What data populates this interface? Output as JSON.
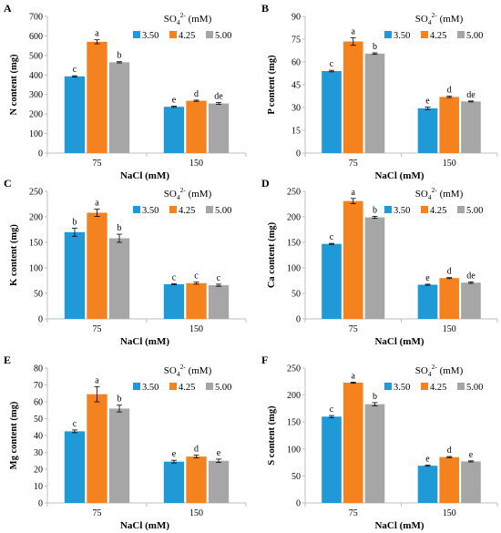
{
  "colors": {
    "s350": "#1f9ad6",
    "s425": "#f4821f",
    "s500": "#a6a6a6",
    "axis": "#bfbfbf"
  },
  "legend": {
    "title_base": "SO",
    "title_sub": "4",
    "title_sup": "2-",
    "title_unit": " (mM)",
    "entries": [
      "3.50",
      "4.25",
      "5.00"
    ]
  },
  "chart_data": [
    {
      "type": "bar",
      "panel": "A",
      "ylabel": "N content (mg)",
      "xlabel": "NaCl (mM)",
      "categories": [
        "75",
        "150"
      ],
      "ylim": [
        0,
        700
      ],
      "yticks": [
        "0",
        "100",
        "200",
        "300",
        "400",
        "500",
        "600",
        "700"
      ],
      "series": [
        {
          "values": [
            393,
            237
          ],
          "errors": [
            3,
            3
          ],
          "letters": [
            "c",
            "e"
          ]
        },
        {
          "values": [
            570,
            268
          ],
          "errors": [
            10,
            3
          ],
          "letters": [
            "a",
            "d"
          ]
        },
        {
          "values": [
            465,
            254
          ],
          "errors": [
            3,
            5
          ],
          "letters": [
            "b",
            "de"
          ]
        }
      ]
    },
    {
      "type": "bar",
      "panel": "B",
      "ylabel": "P content (mg)",
      "xlabel": "NaCl (mM)",
      "categories": [
        "75",
        "150"
      ],
      "ylim": [
        0,
        90
      ],
      "yticks": [
        "0",
        "15",
        "30",
        "45",
        "60",
        "75",
        "90"
      ],
      "series": [
        {
          "values": [
            54,
            29.5
          ],
          "errors": [
            0.5,
            0.8
          ],
          "letters": [
            "c",
            "e"
          ]
        },
        {
          "values": [
            73.5,
            37
          ],
          "errors": [
            2.5,
            0.5
          ],
          "letters": [
            "a",
            "d"
          ]
        },
        {
          "values": [
            65.5,
            34
          ],
          "errors": [
            0.5,
            0.3
          ],
          "letters": [
            "b",
            "de"
          ]
        }
      ]
    },
    {
      "type": "bar",
      "panel": "C",
      "ylabel": "K content (mg)",
      "xlabel": "NaCl (mM)",
      "categories": [
        "75",
        "150"
      ],
      "ylim": [
        0,
        250
      ],
      "yticks": [
        "0",
        "50",
        "100",
        "150",
        "200",
        "250"
      ],
      "series": [
        {
          "values": [
            170,
            68
          ],
          "errors": [
            8,
            1
          ],
          "letters": [
            "b",
            "c"
          ]
        },
        {
          "values": [
            208,
            70
          ],
          "errors": [
            7,
            2
          ],
          "letters": [
            "a",
            "c"
          ]
        },
        {
          "values": [
            158,
            66
          ],
          "errors": [
            8,
            2
          ],
          "letters": [
            "b",
            "c"
          ]
        }
      ]
    },
    {
      "type": "bar",
      "panel": "D",
      "ylabel": "Ca content (mg)",
      "xlabel": "NaCl (mM)",
      "categories": [
        "75",
        "150"
      ],
      "ylim": [
        0,
        250
      ],
      "yticks": [
        "0",
        "50",
        "100",
        "150",
        "200",
        "250"
      ],
      "series": [
        {
          "values": [
            147,
            67
          ],
          "errors": [
            1,
            1
          ],
          "letters": [
            "c",
            "e"
          ]
        },
        {
          "values": [
            231,
            80
          ],
          "errors": [
            5,
            1
          ],
          "letters": [
            "a",
            "d"
          ]
        },
        {
          "values": [
            199,
            71
          ],
          "errors": [
            2,
            1.5
          ],
          "letters": [
            "b",
            "de"
          ]
        }
      ]
    },
    {
      "type": "bar",
      "panel": "E",
      "ylabel": "Mg content (mg)",
      "xlabel": "NaCl (mM)",
      "categories": [
        "75",
        "150"
      ],
      "ylim": [
        0,
        80
      ],
      "yticks": [
        "0",
        "10",
        "20",
        "30",
        "40",
        "50",
        "60",
        "70",
        "80"
      ],
      "series": [
        {
          "values": [
            42.5,
            24.5
          ],
          "errors": [
            0.8,
            0.8
          ],
          "letters": [
            "c",
            "e"
          ]
        },
        {
          "values": [
            64.5,
            27.5
          ],
          "errors": [
            4.5,
            0.8
          ],
          "letters": [
            "a",
            "d"
          ]
        },
        {
          "values": [
            56,
            25
          ],
          "errors": [
            2,
            1
          ],
          "letters": [
            "b",
            "e"
          ]
        }
      ]
    },
    {
      "type": "bar",
      "panel": "F",
      "ylabel": "S content (mg)",
      "xlabel": "NaCl (mM)",
      "categories": [
        "75",
        "150"
      ],
      "ylim": [
        0,
        250
      ],
      "yticks": [
        "0",
        "50",
        "100",
        "150",
        "200",
        "250"
      ],
      "series": [
        {
          "values": [
            160,
            69
          ],
          "errors": [
            2,
            1
          ],
          "letters": [
            "c",
            "e"
          ]
        },
        {
          "values": [
            223,
            85
          ],
          "errors": [
            1,
            1
          ],
          "letters": [
            "a",
            "d"
          ]
        },
        {
          "values": [
            183,
            77
          ],
          "errors": [
            3,
            1
          ],
          "letters": [
            "b",
            "e"
          ]
        }
      ]
    }
  ]
}
